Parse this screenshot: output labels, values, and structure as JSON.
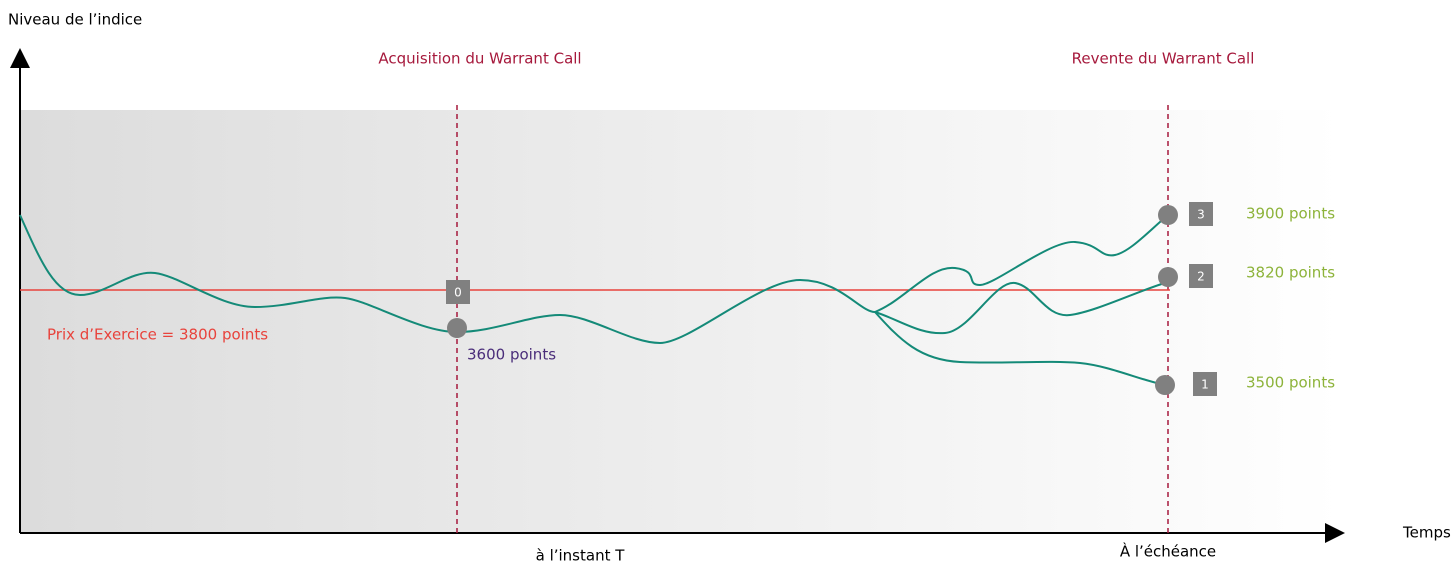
{
  "y_axis_label": "Niveau de l’indice",
  "x_axis_label": "Temps",
  "events": [
    {
      "title": "Acquisition du Warrant Call",
      "time_label": "à l’instant T"
    },
    {
      "title": "Revente du Warrant Call",
      "time_label": "À l’échéance"
    }
  ],
  "strike": "Prix d’Exercice =  3800 points",
  "start_point": {
    "marker": "0",
    "label": "3600 points"
  },
  "outcomes": [
    {
      "marker": "3",
      "label": "3900 points"
    },
    {
      "marker": "2",
      "label": "3820 points"
    },
    {
      "marker": "1",
      "label": "3500 points"
    }
  ]
}
